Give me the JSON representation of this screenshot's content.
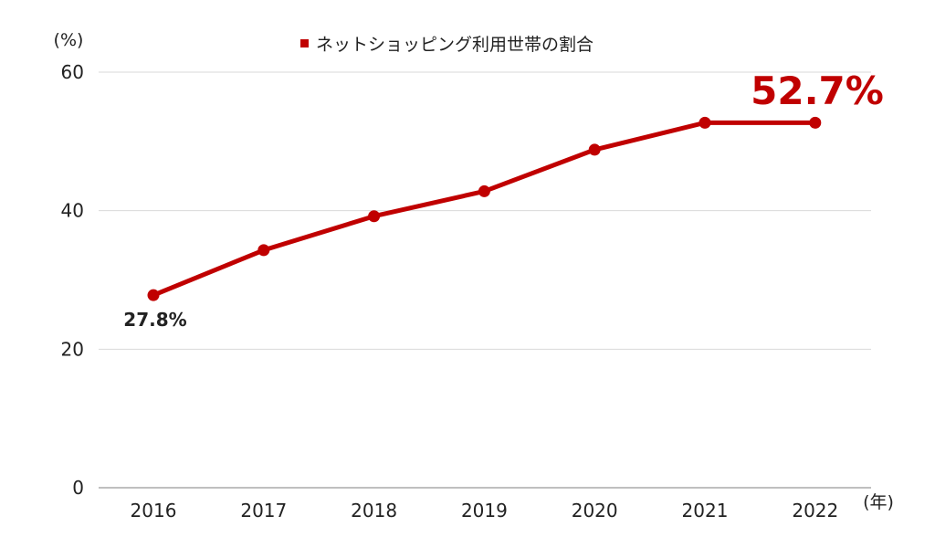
{
  "chart_data": {
    "type": "line",
    "categories": [
      "2016",
      "2017",
      "2018",
      "2019",
      "2020",
      "2021",
      "2022"
    ],
    "series": [
      {
        "name": "ネットショッピング利用世帯の割合",
        "values": [
          27.8,
          34.3,
          39.2,
          42.8,
          48.8,
          52.7,
          52.7
        ],
        "color": "#c00000"
      }
    ],
    "yticks": [
      "0",
      "20",
      "40",
      "60"
    ],
    "ylim": [
      0,
      60
    ],
    "y_unit": "(%)",
    "x_unit": "(年)",
    "grid": true,
    "legend_position": "top-center",
    "annotations": {
      "first": "27.8%",
      "last": "52.7%"
    },
    "colors": {
      "line": "#c00000",
      "grid": "#d9d9d9",
      "axis": "#999999",
      "text": "#222222"
    }
  }
}
